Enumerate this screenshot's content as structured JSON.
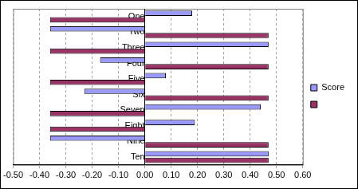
{
  "chart_data": {
    "type": "bar",
    "orientation": "horizontal",
    "categories": [
      "One",
      "Two",
      "Three",
      "Four",
      "Five",
      "Six",
      "Seven",
      "Eight",
      "Nine",
      "Ten"
    ],
    "series": [
      {
        "name": "Score",
        "color": "#9999ff",
        "values": [
          0.18,
          -0.36,
          0.47,
          -0.17,
          0.08,
          -0.23,
          0.44,
          0.19,
          -0.36,
          0.47
        ]
      },
      {
        "color": "#993366",
        "values": [
          -0.36,
          0.47,
          -0.36,
          0.47,
          -0.36,
          0.47,
          -0.36,
          -0.36,
          0.47,
          0.47
        ]
      }
    ],
    "xlim": [
      -0.5,
      0.6
    ],
    "xticks": [
      {
        "value": -0.5,
        "label": "-0.50"
      },
      {
        "value": -0.4,
        "label": "-0.40"
      },
      {
        "value": -0.3,
        "label": "-0.30"
      },
      {
        "value": -0.2,
        "label": "-0.20"
      },
      {
        "value": -0.1,
        "label": "-0.10"
      },
      {
        "value": 0,
        "label": "0.00"
      },
      {
        "value": 0.1,
        "label": "0.10"
      },
      {
        "value": 0.2,
        "label": "0.20"
      },
      {
        "value": 0.3,
        "label": "0.30"
      },
      {
        "value": 0.4,
        "label": "0.40"
      },
      {
        "value": 0.5,
        "label": "0.50"
      },
      {
        "value": 0.6,
        "label": "0.60"
      }
    ],
    "grid": true,
    "legend": "right"
  }
}
